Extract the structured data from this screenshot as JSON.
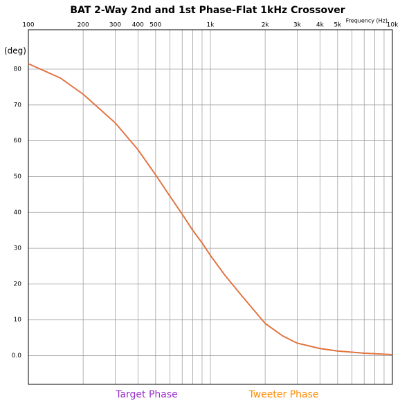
{
  "chart_data": {
    "type": "line",
    "title": "BAT 2-Way 2nd and 1st Phase-Flat 1kHz Crossover",
    "x_label": "Frequency  (Hz)",
    "y_label": "(deg)",
    "xscale": "log",
    "grid": true,
    "xlim": [
      100,
      10000
    ],
    "xticks": [
      100,
      200,
      300,
      400,
      500,
      {
        "value": 1000,
        "label": "1k"
      },
      {
        "value": 2000,
        "label": "2k"
      },
      {
        "value": 3000,
        "label": "3k"
      },
      {
        "value": 4000,
        "label": "4k"
      },
      {
        "value": 5000,
        "label": "5k"
      },
      {
        "value": 10000,
        "label": "10k"
      }
    ],
    "x_minor_ticks": [
      600,
      700,
      800,
      900,
      6000,
      7000,
      8000,
      9000
    ],
    "ylim": [
      -8,
      91
    ],
    "yticks": [
      {
        "value": 0,
        "label": "0.0"
      },
      10,
      20,
      30,
      40,
      50,
      60,
      70,
      80
    ],
    "x": [
      100,
      150,
      200,
      300,
      400,
      500,
      600,
      700,
      800,
      900,
      1000,
      1200,
      1500,
      2000,
      2500,
      3000,
      4000,
      5000,
      7000,
      10000
    ],
    "series": [
      {
        "name": "Target Phase",
        "color": "#9932cc",
        "values": [
          81.5,
          77.5,
          73,
          65,
          57.5,
          50.5,
          44.5,
          39.5,
          35,
          31.5,
          28,
          22.5,
          16.5,
          9,
          5.5,
          3.5,
          2,
          1.3,
          0.7,
          0.3
        ]
      },
      {
        "name": "Tweeter Phase",
        "color": "#ff8c00",
        "values": [
          81.5,
          77.5,
          73,
          65,
          57.5,
          50.5,
          44.5,
          39.5,
          35,
          31.5,
          28,
          22.5,
          16.5,
          9,
          5.5,
          3.5,
          2,
          1.3,
          0.7,
          0.3
        ]
      }
    ]
  }
}
